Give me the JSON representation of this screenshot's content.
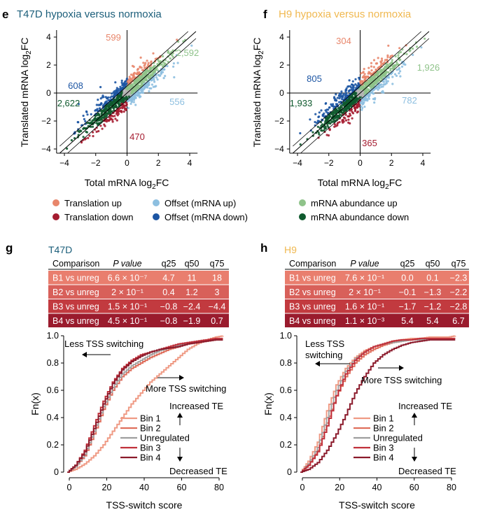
{
  "colors": {
    "translation_up": "#e8866b",
    "translation_down": "#a51c30",
    "offset_up": "#8dbfe0",
    "offset_down": "#1c55a3",
    "abundance_up": "#8fc38a",
    "abundance_down": "#0f5a2e",
    "grey": "#b5b5b5",
    "t47d_title": "#1b5e7a",
    "h9_title": "#f0b850",
    "bin1": "#ef9a84",
    "bin2": "#df6f5d",
    "unreg": "#9e9e9e",
    "bin3": "#c0303a",
    "bin4": "#8b1a2b",
    "tbl_r1": "#e97e6e",
    "tbl_r2": "#d8605a",
    "tbl_r3": "#c23a3f",
    "tbl_r4": "#9a1b2d"
  },
  "panels": {
    "e": {
      "letter": "e",
      "title": "T47D hypoxia versus normoxia"
    },
    "f": {
      "letter": "f",
      "title": "H9 hypoxia versus normoxia"
    },
    "g": {
      "letter": "g",
      "title": "T47D"
    },
    "h": {
      "letter": "h",
      "title": "H9"
    }
  },
  "scatter_axis": {
    "xlabel_pre": "Total mRNA log",
    "ylabel_pre": "Translated mRNA log",
    "sub": "2",
    "suffix": "FC",
    "ticks": [
      "−4",
      "−2",
      "0",
      "2",
      "4"
    ]
  },
  "legend": [
    {
      "label": "Translation up",
      "color_key": "translation_up"
    },
    {
      "label": "Translation down",
      "color_key": "translation_down"
    },
    {
      "label": "Offset (mRNA up)",
      "color_key": "offset_up"
    },
    {
      "label": "Offset (mRNA down)",
      "color_key": "offset_down"
    },
    {
      "label": "mRNA abundance up",
      "color_key": "abundance_up"
    },
    {
      "label": "mRNA abundance down",
      "color_key": "abundance_down"
    }
  ],
  "table_headers": [
    "Comparison",
    "P value",
    "q25",
    "q50",
    "q75"
  ],
  "tables": {
    "g": [
      [
        "B1 vs unreg",
        "6.6 × 10⁻⁷",
        "4.7",
        "11",
        "18"
      ],
      [
        "B2 vs unreg",
        "2 × 10⁻¹",
        "0.4",
        "1.2",
        "3"
      ],
      [
        "B3 vs unreg",
        "1.5 × 10⁻¹",
        "−0.8",
        "−2.4",
        "−4.4"
      ],
      [
        "B4 vs unreg",
        "4.5 × 10⁻¹",
        "−0.8",
        "−1.9",
        "0.7"
      ]
    ],
    "h": [
      [
        "B1 vs unreg",
        "7.6 × 10⁻¹",
        "0.0",
        "0.1",
        "−2.3"
      ],
      [
        "B2 vs unreg",
        "2 × 10⁻¹",
        "−0.1",
        "−1.3",
        "−2.2"
      ],
      [
        "B3 vs unreg",
        "1.6 × 10⁻¹",
        "−1.7",
        "−1.2",
        "−2.8"
      ],
      [
        "B4 vs unreg",
        "1.1 × 10⁻³",
        "5.4",
        "5.4",
        "6.7"
      ]
    ]
  },
  "ecdf_text": {
    "less": "Less TSS switching",
    "more": "More TSS switching",
    "increased": "Increased TE",
    "decreased": "Decreased TE",
    "xlabel": "TSS-switch score",
    "ylabel": "Fn(x)"
  },
  "chart_data": [
    {
      "panel": "e",
      "type": "scatter",
      "title": "T47D hypoxia versus normoxia",
      "xlabel": "Total mRNA log2FC",
      "ylabel": "Translated mRNA log2FC",
      "xlim": [
        -4.5,
        4.5
      ],
      "ylim": [
        -4.3,
        4.5
      ],
      "x_ticks": [
        -4,
        -2,
        0,
        2,
        4
      ],
      "y_ticks": [
        -4,
        -2,
        0,
        2,
        4
      ],
      "category_counts": {
        "translation_up": "599",
        "translation_down": "470",
        "offset_mrna_up": "556",
        "offset_mrna_down": "608",
        "mrna_abundance_up": "2,592",
        "mrna_abundance_down": "2,622"
      }
    },
    {
      "panel": "f",
      "type": "scatter",
      "title": "H9 hypoxia versus normoxia",
      "xlabel": "Total mRNA log2FC",
      "ylabel": "Translated mRNA log2FC",
      "xlim": [
        -4.5,
        4.5
      ],
      "ylim": [
        -4.3,
        4.5
      ],
      "x_ticks": [
        -4,
        -2,
        0,
        2,
        4
      ],
      "y_ticks": [
        -4,
        -2,
        0,
        2,
        4
      ],
      "category_counts": {
        "translation_up": "304",
        "translation_down": "365",
        "offset_mrna_up": "782",
        "offset_mrna_down": "805",
        "mrna_abundance_up": "1,926",
        "mrna_abundance_down": "1,933"
      }
    },
    {
      "panel": "g",
      "type": "line",
      "xlabel": "TSS-switch score",
      "ylabel": "Fn(x)",
      "xlim": [
        -2,
        83
      ],
      "ylim": [
        0,
        1.0
      ],
      "x_ticks": [
        0,
        20,
        40,
        60,
        80
      ],
      "y_ticks": [
        0,
        0.2,
        0.4,
        0.6,
        0.8,
        1.0
      ],
      "series": [
        {
          "name": "Bin 1",
          "color_key": "bin1",
          "x": [
            -1,
            3,
            8,
            13,
            18,
            23,
            28,
            33,
            38,
            43,
            48,
            53,
            58,
            63,
            68,
            73,
            78,
            82
          ],
          "y": [
            0,
            0.02,
            0.06,
            0.12,
            0.2,
            0.3,
            0.4,
            0.5,
            0.58,
            0.66,
            0.72,
            0.78,
            0.84,
            0.9,
            0.94,
            0.97,
            0.99,
            1.0
          ]
        },
        {
          "name": "Bin 2",
          "color_key": "bin2",
          "x": [
            -1,
            3,
            8,
            13,
            18,
            23,
            28,
            33,
            38,
            43,
            48,
            53,
            58,
            63,
            68,
            73,
            78,
            82
          ],
          "y": [
            0,
            0.04,
            0.12,
            0.28,
            0.46,
            0.6,
            0.7,
            0.76,
            0.8,
            0.84,
            0.87,
            0.9,
            0.92,
            0.94,
            0.95,
            0.96,
            0.97,
            0.97
          ]
        },
        {
          "name": "Unregulated",
          "color_key": "unreg",
          "x": [
            -1,
            3,
            8,
            13,
            18,
            23,
            28,
            33,
            38,
            43,
            48,
            53,
            58,
            63,
            68,
            73,
            78,
            82
          ],
          "y": [
            0,
            0.04,
            0.13,
            0.3,
            0.48,
            0.62,
            0.72,
            0.78,
            0.82,
            0.86,
            0.89,
            0.91,
            0.93,
            0.95,
            0.96,
            0.97,
            0.98,
            0.98
          ]
        },
        {
          "name": "Bin 3",
          "color_key": "bin3",
          "x": [
            -1,
            3,
            8,
            13,
            18,
            23,
            28,
            33,
            38,
            43,
            48,
            53,
            58,
            63,
            68,
            73,
            78,
            82
          ],
          "y": [
            0,
            0.05,
            0.16,
            0.34,
            0.52,
            0.66,
            0.76,
            0.82,
            0.86,
            0.88,
            0.9,
            0.92,
            0.94,
            0.95,
            0.96,
            0.97,
            0.98,
            0.98
          ]
        },
        {
          "name": "Bin 4",
          "color_key": "bin4",
          "x": [
            -1,
            3,
            8,
            13,
            18,
            23,
            28,
            33,
            38,
            43,
            48,
            53,
            58,
            63,
            68,
            73,
            78,
            82
          ],
          "y": [
            0,
            0.05,
            0.15,
            0.32,
            0.5,
            0.65,
            0.75,
            0.81,
            0.85,
            0.88,
            0.9,
            0.91,
            0.92,
            0.94,
            0.95,
            0.96,
            0.97,
            0.97
          ]
        }
      ]
    },
    {
      "panel": "h",
      "type": "line",
      "xlabel": "TSS-switch score",
      "ylabel": "Fn(x)",
      "xlim": [
        -2,
        83
      ],
      "ylim": [
        0,
        1.0
      ],
      "x_ticks": [
        0,
        20,
        40,
        60,
        80
      ],
      "y_ticks": [
        0,
        0.2,
        0.4,
        0.6,
        0.8,
        1.0
      ],
      "series": [
        {
          "name": "Bin 1",
          "color_key": "bin1",
          "x": [
            -1,
            3,
            8,
            13,
            18,
            23,
            28,
            33,
            38,
            43,
            48,
            53,
            58,
            63,
            68,
            73,
            78,
            82
          ],
          "y": [
            0,
            0.08,
            0.22,
            0.45,
            0.64,
            0.76,
            0.84,
            0.89,
            0.92,
            0.94,
            0.96,
            0.97,
            0.98,
            0.98,
            0.99,
            0.99,
            0.99,
            1.0
          ]
        },
        {
          "name": "Bin 2",
          "color_key": "bin2",
          "x": [
            -1,
            3,
            8,
            13,
            18,
            23,
            28,
            33,
            38,
            43,
            48,
            53,
            58,
            63,
            68,
            73,
            78,
            82
          ],
          "y": [
            0,
            0.05,
            0.16,
            0.36,
            0.56,
            0.7,
            0.8,
            0.86,
            0.9,
            0.93,
            0.95,
            0.96,
            0.97,
            0.98,
            0.98,
            0.98,
            0.98,
            0.98
          ]
        },
        {
          "name": "Unregulated",
          "color_key": "unreg",
          "x": [
            -1,
            3,
            8,
            13,
            18,
            23,
            28,
            33,
            38,
            43,
            48,
            53,
            58,
            63,
            68,
            73,
            78,
            82
          ],
          "y": [
            0,
            0.06,
            0.18,
            0.4,
            0.6,
            0.74,
            0.83,
            0.88,
            0.92,
            0.94,
            0.95,
            0.96,
            0.97,
            0.97,
            0.98,
            0.98,
            0.98,
            0.98
          ]
        },
        {
          "name": "Bin 3",
          "color_key": "bin3",
          "x": [
            -1,
            3,
            8,
            13,
            18,
            23,
            28,
            33,
            38,
            43,
            48,
            53,
            58,
            63,
            68,
            73,
            78,
            82
          ],
          "y": [
            0,
            0.05,
            0.15,
            0.34,
            0.56,
            0.72,
            0.82,
            0.88,
            0.92,
            0.94,
            0.96,
            0.97,
            0.97,
            0.98,
            0.98,
            0.98,
            0.98,
            0.98
          ]
        },
        {
          "name": "Bin 4",
          "color_key": "bin4",
          "x": [
            -1,
            3,
            8,
            13,
            18,
            23,
            28,
            33,
            38,
            43,
            48,
            53,
            58,
            63,
            68,
            73,
            78,
            82
          ],
          "y": [
            0,
            0.02,
            0.07,
            0.16,
            0.28,
            0.42,
            0.58,
            0.7,
            0.8,
            0.86,
            0.9,
            0.93,
            0.95,
            0.96,
            0.97,
            0.97,
            0.97,
            0.97
          ]
        }
      ]
    }
  ]
}
